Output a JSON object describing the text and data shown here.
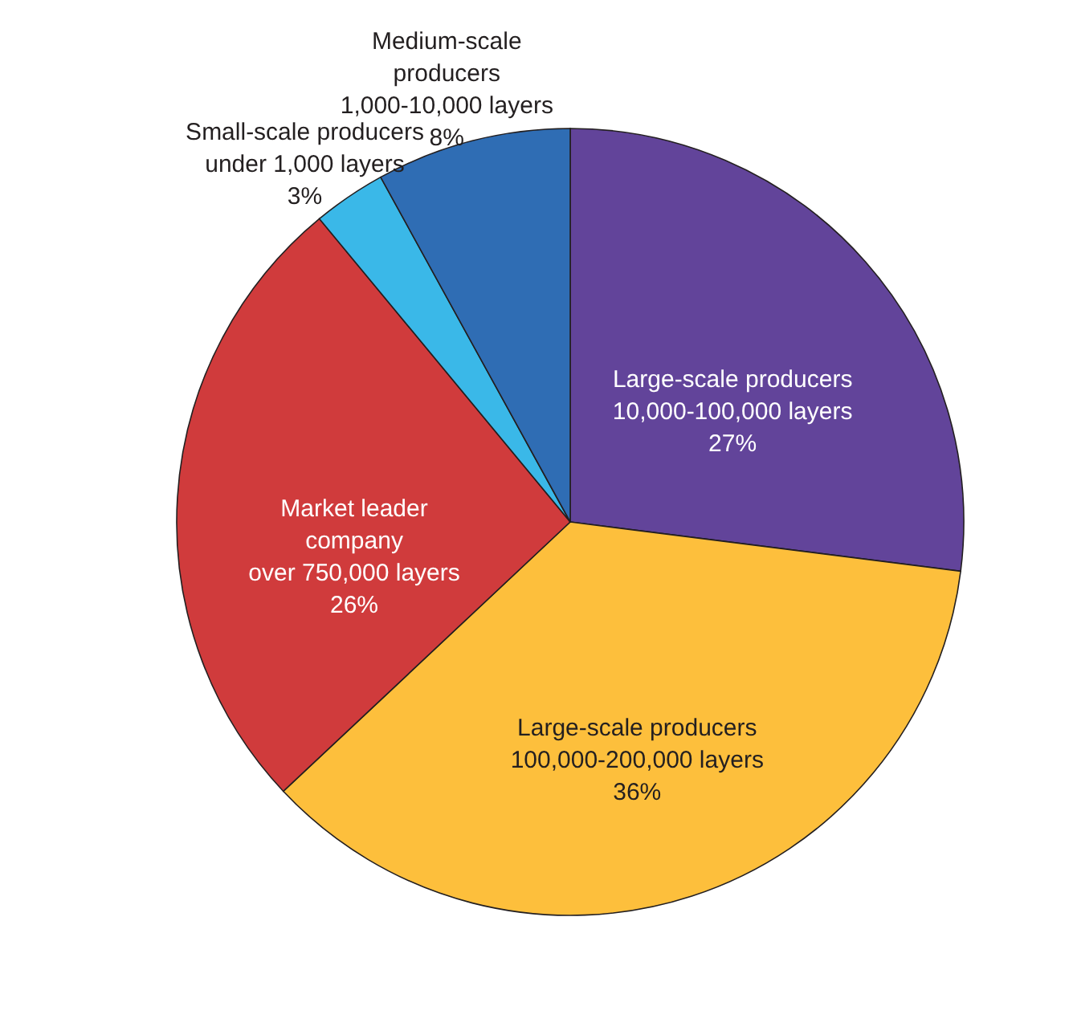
{
  "chart_data": {
    "type": "pie",
    "categories": [
      "Large-scale producers\n10,000-100,000 layers",
      "Large-scale producers\n100,000-200,000 layers",
      "Market leader\ncompany\nover 750,000 layers",
      "Small-scale producers\nunder 1,000 layers",
      "Medium-scale\nproducers\n1,000-10,000 layers"
    ],
    "values": [
      27,
      36,
      26,
      3,
      8
    ],
    "colors": [
      "#62449a",
      "#fdbf3c",
      "#d03b3c",
      "#3ab8e8",
      "#2f6db4"
    ],
    "value_labels": [
      "27%",
      "36%",
      "26%",
      "3%",
      "8%"
    ]
  }
}
